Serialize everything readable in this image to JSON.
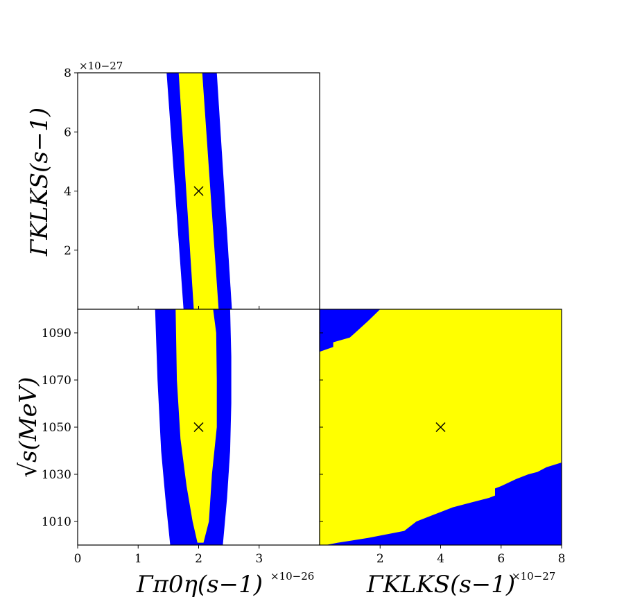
{
  "colors": {
    "inner": "#ffff00",
    "outer": "#0000ff",
    "frame": "#000000"
  },
  "chart_data": [
    {
      "type": "contour",
      "panel": "top-left",
      "x_range": [
        0,
        4e-26
      ],
      "y_range": [
        0,
        8e-27
      ],
      "y_ticks": [
        {
          "v": 2,
          "label": "2"
        },
        {
          "v": 4,
          "label": "4"
        },
        {
          "v": 6,
          "label": "6"
        },
        {
          "v": 8,
          "label": "8"
        }
      ],
      "y_offset_text": "×10−27",
      "ylabel": "ΓKLKS(s−1)",
      "best_fit": {
        "x": 2e-26,
        "y": 4e-27
      },
      "outer_band": {
        "left": [
          [
            1.47,
            8
          ],
          [
            1.75,
            0
          ]
        ],
        "right": [
          [
            2.3,
            8
          ],
          [
            2.55,
            0
          ]
        ]
      },
      "inner_band": {
        "left": [
          [
            1.67,
            8
          ],
          [
            1.92,
            0
          ]
        ],
        "right": [
          [
            2.06,
            8
          ],
          [
            2.33,
            0
          ]
        ]
      }
    },
    {
      "type": "contour",
      "panel": "bottom-left",
      "x_range": [
        0,
        4e-26
      ],
      "y_range": [
        1000,
        1100
      ],
      "x_ticks": [
        {
          "v": 0,
          "label": "0"
        },
        {
          "v": 1,
          "label": "1"
        },
        {
          "v": 2,
          "label": "2"
        },
        {
          "v": 3,
          "label": "3"
        }
      ],
      "y_ticks": [
        {
          "v": 1010,
          "label": "1010"
        },
        {
          "v": 1030,
          "label": "1030"
        },
        {
          "v": 1050,
          "label": "1050"
        },
        {
          "v": 1070,
          "label": "1070"
        },
        {
          "v": 1090,
          "label": "1090"
        }
      ],
      "x_offset_text": "×10−26",
      "xlabel": "Γπ0η(s−1)",
      "ylabel": "√s(MeV)",
      "best_fit": {
        "x": 2e-26,
        "y": 1050
      },
      "outer_band": [
        [
          1.28,
          1100
        ],
        [
          1.32,
          1070
        ],
        [
          1.38,
          1040
        ],
        [
          1.45,
          1020
        ],
        [
          1.53,
          1000
        ],
        [
          2.4,
          1000
        ],
        [
          2.47,
          1020
        ],
        [
          2.52,
          1040
        ],
        [
          2.54,
          1060
        ],
        [
          2.54,
          1080
        ],
        [
          2.52,
          1100
        ]
      ],
      "inner_band": [
        [
          1.62,
          1100
        ],
        [
          1.64,
          1070
        ],
        [
          1.7,
          1045
        ],
        [
          1.8,
          1025
        ],
        [
          1.9,
          1010
        ],
        [
          1.98,
          1001
        ],
        [
          2.08,
          1001
        ],
        [
          2.17,
          1010
        ],
        [
          2.22,
          1030
        ],
        [
          2.3,
          1050
        ],
        [
          2.3,
          1070
        ],
        [
          2.29,
          1090
        ],
        [
          2.24,
          1100
        ]
      ]
    },
    {
      "type": "contour",
      "panel": "bottom-right",
      "x_range": [
        0,
        8e-27
      ],
      "y_range": [
        1000,
        1100
      ],
      "x_ticks": [
        {
          "v": 2,
          "label": "2"
        },
        {
          "v": 4,
          "label": "4"
        },
        {
          "v": 6,
          "label": "6"
        },
        {
          "v": 8,
          "label": "8"
        }
      ],
      "x_offset_text": "×10−27",
      "xlabel": "ΓKLKS(s−1)",
      "best_fit": {
        "x": 4e-27,
        "y": 1050
      },
      "inner_region": [
        [
          0,
          1082
        ],
        [
          0.45,
          1084
        ],
        [
          0.45,
          1086
        ],
        [
          1.0,
          1088
        ],
        [
          1.6,
          1095
        ],
        [
          2.0,
          1100
        ],
        [
          8,
          1100
        ],
        [
          8,
          1035
        ],
        [
          7.5,
          1033
        ],
        [
          7.2,
          1031
        ],
        [
          6.9,
          1030
        ],
        [
          6.5,
          1028
        ],
        [
          6.0,
          1025
        ],
        [
          5.8,
          1024
        ],
        [
          5.8,
          1021
        ],
        [
          5.6,
          1020
        ],
        [
          5.0,
          1018
        ],
        [
          4.4,
          1016
        ],
        [
          3.8,
          1013
        ],
        [
          3.2,
          1010
        ],
        [
          2.8,
          1006
        ],
        [
          1.6,
          1003
        ],
        [
          0.6,
          1001
        ],
        [
          0.2,
          1000
        ],
        [
          0,
          1000
        ]
      ]
    }
  ]
}
